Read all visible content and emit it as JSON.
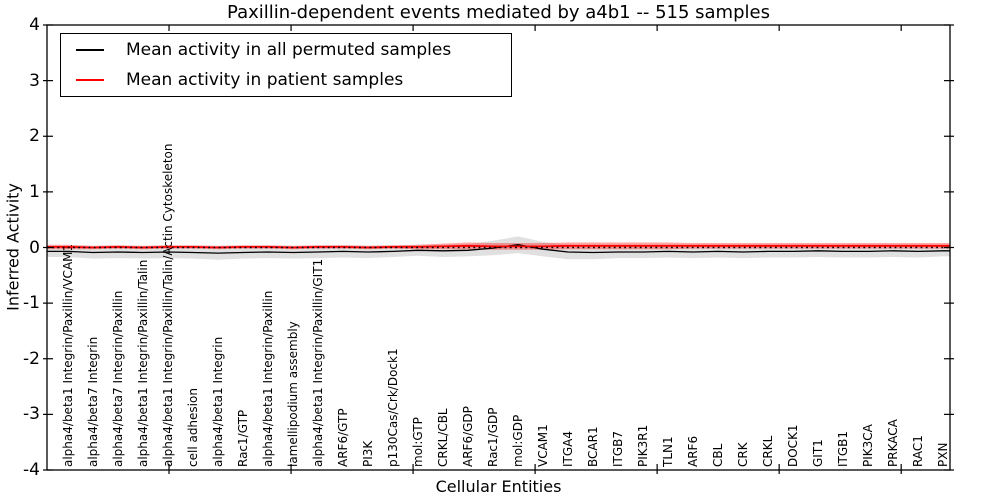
{
  "figure": {
    "background": "#ffffff"
  },
  "title": "Paxillin-dependent events mediated by a4b1 -- 515 samples",
  "legend": {
    "entries": [
      {
        "label": "Mean activity in all permuted samples",
        "color": "#000000"
      },
      {
        "label": "Mean activity in patient samples",
        "color": "#ff0000"
      }
    ]
  },
  "chart_data": {
    "type": "line",
    "title": "Paxillin-dependent events mediated by a4b1 -- 515 samples",
    "xlabel": "Cellular Entities",
    "ylabel": "Inferred Activity",
    "ylim": [
      -4,
      4
    ],
    "yticks": [
      "4",
      "3",
      "2",
      "1",
      "0",
      "-1",
      "-2",
      "-3",
      "-4"
    ],
    "ytick_values": [
      4,
      3,
      2,
      1,
      0,
      -1,
      -2,
      -3,
      -4
    ],
    "xtick_values": [
      5,
      10,
      15,
      20,
      25,
      30,
      35
    ],
    "grid": false,
    "legend_position": "upper left",
    "zero_line": {
      "value": 0,
      "style": "dotted",
      "color": "#000000"
    },
    "categories": [
      "alpha4/beta1 Integrin/Paxillin/VCAM1",
      "alpha4/beta7 Integrin",
      "alpha4/beta7 Integrin/Paxillin",
      "alpha4/beta1 Integrin/Paxillin/Talin",
      "alpha4/beta1 Integrin/Paxillin/Talin/Actin Cytoskeleton",
      "cell adhesion",
      "alpha4/beta1 Integrin",
      "Rac1/GTP",
      "alpha4/beta1 Integrin/Paxillin",
      "lamellipodium assembly",
      "alpha4/beta1 Integrin/Paxillin/GIT1",
      "ARF6/GTP",
      "PI3K",
      "p130Cas/Crk/Dock1",
      "mol:GTP",
      "CRKL/CBL",
      "ARF6/GDP",
      "Rac1/GDP",
      "mol:GDP",
      "VCAM1",
      "ITGA4",
      "BCAR1",
      "ITGB7",
      "PIK3R1",
      "TLN1",
      "ARF6",
      "CBL",
      "CRK",
      "CRKL",
      "DOCK1",
      "GIT1",
      "ITGB1",
      "PIK3CA",
      "PRKACA",
      "RAC1",
      "PXN"
    ],
    "series": [
      {
        "name": "Mean activity in all permuted samples",
        "color": "#000000",
        "line_width": 1.3,
        "band_color": "rgba(0,0,0,0.12)",
        "values": [
          -0.07,
          -0.09,
          -0.08,
          -0.09,
          -0.08,
          -0.09,
          -0.1,
          -0.09,
          -0.08,
          -0.09,
          -0.08,
          -0.07,
          -0.08,
          -0.07,
          -0.05,
          -0.06,
          -0.05,
          -0.01,
          0.05,
          -0.03,
          -0.08,
          -0.09,
          -0.08,
          -0.08,
          -0.07,
          -0.08,
          -0.07,
          -0.08,
          -0.07,
          -0.07,
          -0.06,
          -0.07,
          -0.07,
          -0.06,
          -0.07,
          -0.06
        ],
        "band_halfwidth": [
          0.1,
          0.11,
          0.11,
          0.11,
          0.11,
          0.11,
          0.12,
          0.11,
          0.11,
          0.11,
          0.11,
          0.11,
          0.11,
          0.1,
          0.1,
          0.11,
          0.11,
          0.13,
          0.15,
          0.13,
          0.13,
          0.12,
          0.11,
          0.11,
          0.11,
          0.11,
          0.11,
          0.11,
          0.11,
          0.11,
          0.11,
          0.11,
          0.11,
          0.11,
          0.11,
          0.1
        ]
      },
      {
        "name": "Mean activity in patient samples",
        "color": "#ff0000",
        "line_width": 1.8,
        "band_color": "rgba(255,0,0,0.35)",
        "values": [
          0.01,
          0.0,
          0.01,
          0.0,
          0.01,
          0.01,
          0.0,
          0.01,
          0.01,
          0.0,
          0.01,
          0.01,
          0.0,
          0.01,
          0.01,
          0.02,
          0.03,
          0.02,
          0.02,
          0.02,
          0.03,
          0.03,
          0.03,
          0.03,
          0.03,
          0.03,
          0.03,
          0.03,
          0.03,
          0.03,
          0.03,
          0.03,
          0.03,
          0.03,
          0.03,
          0.03
        ],
        "band_halfwidth": [
          0.04,
          0.03,
          0.03,
          0.03,
          0.03,
          0.03,
          0.03,
          0.03,
          0.03,
          0.03,
          0.03,
          0.03,
          0.03,
          0.03,
          0.04,
          0.05,
          0.06,
          0.06,
          0.06,
          0.06,
          0.06,
          0.06,
          0.06,
          0.06,
          0.06,
          0.05,
          0.05,
          0.05,
          0.05,
          0.05,
          0.05,
          0.05,
          0.05,
          0.05,
          0.05,
          0.05
        ]
      }
    ]
  }
}
